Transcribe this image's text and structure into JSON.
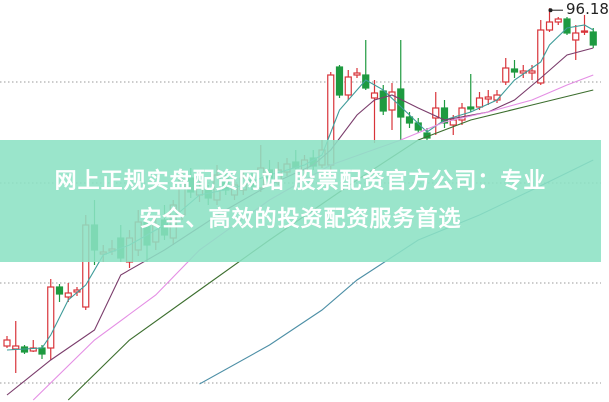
{
  "chart_data": {
    "type": "candlestick",
    "title": "",
    "xlabel": "",
    "ylabel": "",
    "ylim": [
      56.8,
      97.0
    ],
    "grid": true,
    "colors": {
      "up": "#d8343a",
      "down": "#1e9a40",
      "ma5": "#3f9c9a",
      "ma10": "#7b3d6c",
      "ma20": "#e48ee4",
      "ma30": "#3c6e2e",
      "ma60": "#4d8fa6"
    },
    "max_label": "96.18",
    "max_index": 62,
    "candles": [
      [
        62.4,
        63.0,
        63.4,
        62.2
      ],
      [
        62.1,
        62.4,
        64.9,
        59.7
      ],
      [
        62.3,
        61.8,
        62.5,
        61.6
      ],
      [
        61.9,
        62.2,
        63.0,
        61.8
      ],
      [
        62.2,
        61.6,
        62.5,
        61.1
      ],
      [
        62.2,
        68.3,
        69.1,
        61.0
      ],
      [
        68.3,
        67.6,
        68.6,
        66.8
      ],
      [
        67.3,
        67.7,
        68.7,
        66.8
      ],
      [
        67.8,
        68.0,
        68.3,
        67.4
      ],
      [
        66.3,
        74.5,
        75.5,
        66.0
      ],
      [
        74.5,
        72.0,
        77.0,
        70.5
      ],
      [
        71.6,
        71.8,
        72.5,
        70.8
      ],
      [
        71.9,
        72.1,
        73.0,
        71.5
      ],
      [
        73.2,
        71.2,
        74.5,
        70.8
      ],
      [
        70.8,
        73.2,
        74.0,
        70.2
      ],
      [
        72.0,
        74.8,
        76.0,
        71.4
      ],
      [
        74.8,
        72.5,
        75.5,
        70.8
      ],
      [
        72.8,
        74.5,
        75.5,
        72.0
      ],
      [
        75.0,
        73.5,
        76.5,
        73.0
      ],
      [
        73.2,
        76.5,
        77.0,
        72.5
      ],
      [
        75.5,
        79.0,
        80.0,
        75.0
      ],
      [
        79.2,
        77.8,
        80.2,
        77.2
      ],
      [
        77.5,
        78.2,
        79.0,
        76.8
      ],
      [
        78.0,
        77.2,
        78.5,
        76.5
      ],
      [
        77.0,
        79.5,
        80.5,
        76.5
      ],
      [
        79.2,
        78.0,
        80.0,
        77.5
      ],
      [
        77.5,
        78.5,
        79.2,
        77.0
      ],
      [
        78.0,
        79.2,
        80.0,
        77.5
      ],
      [
        79.0,
        78.4,
        79.8,
        78.0
      ],
      [
        78.2,
        80.2,
        82.5,
        77.8
      ],
      [
        80.0,
        79.2,
        81.0,
        78.8
      ],
      [
        79.0,
        80.0,
        80.8,
        78.5
      ],
      [
        79.8,
        80.6,
        81.2,
        79.4
      ],
      [
        80.8,
        80.2,
        82.0,
        79.8
      ],
      [
        80.0,
        81.0,
        81.5,
        79.5
      ],
      [
        81.2,
        80.4,
        82.0,
        80.0
      ],
      [
        80.5,
        82.0,
        83.0,
        80.2
      ],
      [
        80.5,
        89.5,
        89.8,
        80.0
      ],
      [
        90.3,
        87.5,
        90.5,
        87.2
      ],
      [
        87.5,
        89.3,
        90.0,
        87.0
      ],
      [
        89.5,
        89.7,
        90.2,
        89.2
      ],
      [
        89.5,
        88.2,
        93.0,
        88.0
      ],
      [
        87.2,
        87.7,
        89.0,
        82.7
      ],
      [
        87.9,
        85.9,
        88.5,
        85.5
      ],
      [
        86.0,
        87.8,
        88.7,
        84.0
      ],
      [
        88.1,
        85.3,
        93.0,
        83.0
      ],
      [
        85.3,
        84.7,
        85.8,
        84.2
      ],
      [
        84.7,
        84.0,
        85.2,
        83.7
      ],
      [
        83.7,
        83.2,
        84.2,
        83.0
      ],
      [
        85.2,
        86.2,
        87.8,
        83.5
      ],
      [
        86.2,
        84.7,
        87.0,
        84.2
      ],
      [
        84.5,
        85.0,
        85.5,
        83.5
      ],
      [
        85.0,
        86.2,
        86.7,
        84.5
      ],
      [
        86.3,
        86.1,
        89.6,
        85.8
      ],
      [
        86.3,
        87.2,
        87.8,
        86.0
      ],
      [
        87.1,
        87.3,
        88.0,
        86.5
      ],
      [
        87.0,
        87.5,
        88.0,
        86.7
      ],
      [
        88.8,
        90.2,
        91.2,
        88.5
      ],
      [
        90.1,
        89.8,
        91.0,
        89.2
      ],
      [
        89.7,
        89.9,
        90.5,
        89.2
      ],
      [
        89.7,
        89.9,
        90.5,
        89.0
      ],
      [
        88.7,
        94.0,
        95.0,
        88.5
      ],
      [
        94.0,
        94.8,
        96.18,
        93.8
      ],
      [
        94.8,
        95.1,
        95.3,
        94.5
      ],
      [
        95.1,
        93.7,
        95.3,
        93.5
      ],
      [
        93.0,
        93.7,
        94.5,
        91.0
      ],
      [
        93.8,
        93.9,
        95.5,
        93.5
      ],
      [
        93.8,
        92.5,
        94.2,
        92.2
      ]
    ],
    "moving_averages": {
      "ma5": [
        [
          0,
          62.0
        ],
        [
          4,
          62.2
        ],
        [
          5,
          63.5
        ],
        [
          7,
          67.0
        ],
        [
          9,
          68.5
        ],
        [
          11,
          71.5
        ],
        [
          14,
          72.5
        ],
        [
          18,
          74.5
        ],
        [
          22,
          77.5
        ],
        [
          26,
          78.2
        ],
        [
          30,
          79.5
        ],
        [
          34,
          80.5
        ],
        [
          36,
          81.5
        ],
        [
          38,
          86.0
        ],
        [
          41,
          89.0
        ],
        [
          43,
          88.0
        ],
        [
          46,
          85.5
        ],
        [
          48,
          83.8
        ],
        [
          50,
          85.0
        ],
        [
          53,
          85.8
        ],
        [
          56,
          87.0
        ],
        [
          58,
          89.0
        ],
        [
          61,
          90.8
        ],
        [
          62,
          92.5
        ],
        [
          64,
          94.2
        ],
        [
          66,
          94.5
        ],
        [
          67,
          94.0
        ]
      ],
      "ma10": [
        [
          0,
          57.5
        ],
        [
          5,
          61.0
        ],
        [
          10,
          64.0
        ],
        [
          13,
          69.5
        ],
        [
          18,
          72.0
        ],
        [
          25,
          76.0
        ],
        [
          30,
          78.5
        ],
        [
          35,
          80.5
        ],
        [
          37,
          82.0
        ],
        [
          40,
          85.5
        ],
        [
          42,
          87.0
        ],
        [
          44,
          87.5
        ],
        [
          47,
          86.2
        ],
        [
          50,
          85.0
        ],
        [
          55,
          85.8
        ],
        [
          58,
          87.0
        ],
        [
          61,
          89.2
        ],
        [
          64,
          91.5
        ],
        [
          67,
          92.2
        ]
      ],
      "ma20": [
        [
          3,
          57.0
        ],
        [
          10,
          63.0
        ],
        [
          17,
          67.5
        ],
        [
          22,
          72.0
        ],
        [
          30,
          77.0
        ],
        [
          37,
          80.5
        ],
        [
          45,
          83.0
        ],
        [
          50,
          84.8
        ],
        [
          55,
          85.8
        ],
        [
          60,
          87.0
        ],
        [
          64,
          88.5
        ],
        [
          67,
          89.5
        ]
      ],
      "ma30": [
        [
          7,
          57.0
        ],
        [
          14,
          63.0
        ],
        [
          22,
          68.0
        ],
        [
          30,
          73.0
        ],
        [
          40,
          79.0
        ],
        [
          47,
          83.0
        ],
        [
          53,
          85.0
        ],
        [
          60,
          86.5
        ],
        [
          67,
          88.0
        ]
      ],
      "ma60": [
        [
          22,
          58.6
        ],
        [
          30,
          62.5
        ],
        [
          36,
          66.0
        ],
        [
          40,
          69.0
        ],
        [
          47,
          73.0
        ],
        [
          54,
          75.5
        ],
        [
          60,
          78.0
        ],
        [
          67,
          81.0
        ]
      ]
    }
  },
  "banner": {
    "line1": "网上正规实盘配资网站 股票配资官方公司：专业",
    "line2": "安全、高效的投资配资服务首选"
  }
}
